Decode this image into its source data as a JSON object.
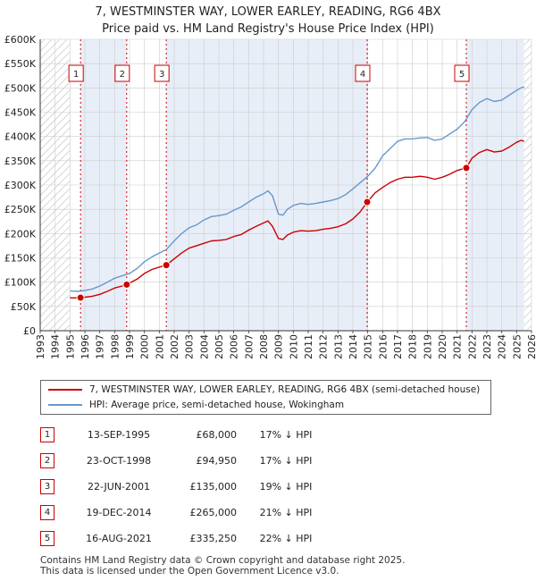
{
  "title_line1": "7, WESTMINSTER WAY, LOWER EARLEY, READING, RG6 4BX",
  "title_line2": "Price paid vs. HM Land Registry's House Price Index (HPI)",
  "colors": {
    "property": "#cc0000",
    "hpi": "#6699cc",
    "grid": "#cccccc",
    "hatch": "#bbbbbb",
    "shade": "#e8eef8"
  },
  "legend": {
    "property": "7, WESTMINSTER WAY, LOWER EARLEY, READING, RG6 4BX (semi-detached house)",
    "hpi": "HPI: Average price, semi-detached house, Wokingham"
  },
  "sales": [
    {
      "num": "1",
      "date": "13-SEP-1995",
      "price": "£68,000",
      "hpi": "17% ↓ HPI"
    },
    {
      "num": "2",
      "date": "23-OCT-1998",
      "price": "£94,950",
      "hpi": "17% ↓ HPI"
    },
    {
      "num": "3",
      "date": "22-JUN-2001",
      "price": "£135,000",
      "hpi": "19% ↓ HPI"
    },
    {
      "num": "4",
      "date": "19-DEC-2014",
      "price": "£265,000",
      "hpi": "21% ↓ HPI"
    },
    {
      "num": "5",
      "date": "16-AUG-2021",
      "price": "£335,250",
      "hpi": "22% ↓ HPI"
    }
  ],
  "footer_line1": "Contains HM Land Registry data © Crown copyright and database right 2025.",
  "footer_line2": "This data is licensed under the Open Government Licence v3.0.",
  "chart_data": {
    "type": "line",
    "title": "7, WESTMINSTER WAY, LOWER EARLEY, READING, RG6 4BX",
    "subtitle": "Price paid vs. HM Land Registry's House Price Index (HPI)",
    "xlim": [
      1993,
      2026
    ],
    "ylim": [
      0,
      600000
    ],
    "x_ticks": [
      1993,
      1994,
      1995,
      1996,
      1997,
      1998,
      1999,
      2000,
      2001,
      2002,
      2003,
      2004,
      2005,
      2006,
      2007,
      2008,
      2009,
      2010,
      2011,
      2012,
      2013,
      2014,
      2015,
      2016,
      2017,
      2018,
      2019,
      2020,
      2021,
      2022,
      2023,
      2024,
      2025,
      2026
    ],
    "y_ticks": [
      {
        "value": 0,
        "label": "£0"
      },
      {
        "value": 50000,
        "label": "£50K"
      },
      {
        "value": 100000,
        "label": "£100K"
      },
      {
        "value": 150000,
        "label": "£150K"
      },
      {
        "value": 200000,
        "label": "£200K"
      },
      {
        "value": 250000,
        "label": "£250K"
      },
      {
        "value": 300000,
        "label": "£300K"
      },
      {
        "value": 350000,
        "label": "£350K"
      },
      {
        "value": 400000,
        "label": "£400K"
      },
      {
        "value": 450000,
        "label": "£450K"
      },
      {
        "value": 500000,
        "label": "£500K"
      },
      {
        "value": 550000,
        "label": "£550K"
      },
      {
        "value": 600000,
        "label": "£600K"
      }
    ],
    "data_start": 1995.0,
    "data_end": 2025.5,
    "series": [
      {
        "name": "HPI: Average price, semi-detached house, Wokingham",
        "x": [
          1995.0,
          1995.5,
          1996.0,
          1996.5,
          1997.0,
          1997.5,
          1998.0,
          1998.5,
          1999.0,
          1999.5,
          2000.0,
          2000.5,
          2001.0,
          2001.5,
          2002.0,
          2002.5,
          2003.0,
          2003.5,
          2004.0,
          2004.5,
          2005.0,
          2005.5,
          2006.0,
          2006.5,
          2007.0,
          2007.5,
          2008.0,
          2008.3,
          2008.6,
          2009.0,
          2009.3,
          2009.6,
          2010.0,
          2010.5,
          2011.0,
          2011.5,
          2012.0,
          2012.5,
          2013.0,
          2013.5,
          2014.0,
          2014.5,
          2015.0,
          2015.5,
          2016.0,
          2016.5,
          2017.0,
          2017.5,
          2018.0,
          2018.5,
          2019.0,
          2019.5,
          2020.0,
          2020.5,
          2021.0,
          2021.5,
          2022.0,
          2022.5,
          2023.0,
          2023.5,
          2024.0,
          2024.5,
          2025.0,
          2025.3,
          2025.5
        ],
        "values": [
          82000,
          81000,
          83000,
          86000,
          92000,
          100000,
          108000,
          113000,
          118000,
          128000,
          142000,
          152000,
          160000,
          168000,
          185000,
          200000,
          212000,
          218000,
          228000,
          235000,
          237000,
          240000,
          248000,
          255000,
          265000,
          275000,
          282000,
          288000,
          278000,
          240000,
          238000,
          250000,
          258000,
          262000,
          260000,
          262000,
          265000,
          268000,
          272000,
          280000,
          292000,
          305000,
          318000,
          335000,
          360000,
          375000,
          390000,
          395000,
          395000,
          397000,
          398000,
          392000,
          395000,
          405000,
          415000,
          430000,
          455000,
          470000,
          478000,
          472000,
          475000,
          485000,
          495000,
          500000,
          502000
        ]
      },
      {
        "name": "7, WESTMINSTER WAY, LOWER EARLEY, READING, RG6 4BX (semi-detached house)",
        "x": [
          1995.0,
          1995.2,
          1995.7,
          1996.0,
          1996.5,
          1997.0,
          1997.5,
          1998.0,
          1998.5,
          1998.81,
          1999.0,
          1999.5,
          2000.0,
          2000.5,
          2001.0,
          2001.47,
          2002.0,
          2002.5,
          2003.0,
          2003.5,
          2004.0,
          2004.5,
          2005.0,
          2005.5,
          2006.0,
          2006.5,
          2007.0,
          2007.5,
          2008.0,
          2008.3,
          2008.6,
          2009.0,
          2009.3,
          2009.6,
          2010.0,
          2010.5,
          2011.0,
          2011.5,
          2012.0,
          2012.5,
          2013.0,
          2013.5,
          2014.0,
          2014.5,
          2014.96,
          2015.5,
          2016.0,
          2016.5,
          2017.0,
          2017.5,
          2018.0,
          2018.5,
          2019.0,
          2019.5,
          2020.0,
          2020.5,
          2021.0,
          2021.62,
          2022.0,
          2022.5,
          2023.0,
          2023.5,
          2024.0,
          2024.5,
          2025.0,
          2025.3,
          2025.5
        ],
        "values": [
          68000,
          67500,
          68000,
          69000,
          71000,
          75000,
          81000,
          88000,
          92000,
          94950,
          98000,
          106000,
          118000,
          126000,
          131000,
          135000,
          148000,
          160000,
          170000,
          175000,
          180000,
          185000,
          186000,
          188000,
          194000,
          198000,
          207000,
          215000,
          222000,
          226000,
          215000,
          190000,
          188000,
          197000,
          203000,
          206000,
          205000,
          206000,
          209000,
          211000,
          214000,
          220000,
          230000,
          245000,
          265000,
          284000,
          295000,
          305000,
          312000,
          316000,
          316000,
          318000,
          316000,
          312000,
          316000,
          322000,
          330000,
          335250,
          355000,
          367000,
          373000,
          368000,
          370000,
          378000,
          388000,
          392000,
          390000
        ]
      }
    ],
    "sales": [
      {
        "num": "1",
        "x": 1995.71,
        "value": 68000
      },
      {
        "num": "2",
        "x": 1998.81,
        "value": 94950
      },
      {
        "num": "3",
        "x": 2001.47,
        "value": 135000
      },
      {
        "num": "4",
        "x": 2014.96,
        "value": 265000
      },
      {
        "num": "5",
        "x": 2021.62,
        "value": 335250
      }
    ],
    "marker_label_value": 530000
  }
}
